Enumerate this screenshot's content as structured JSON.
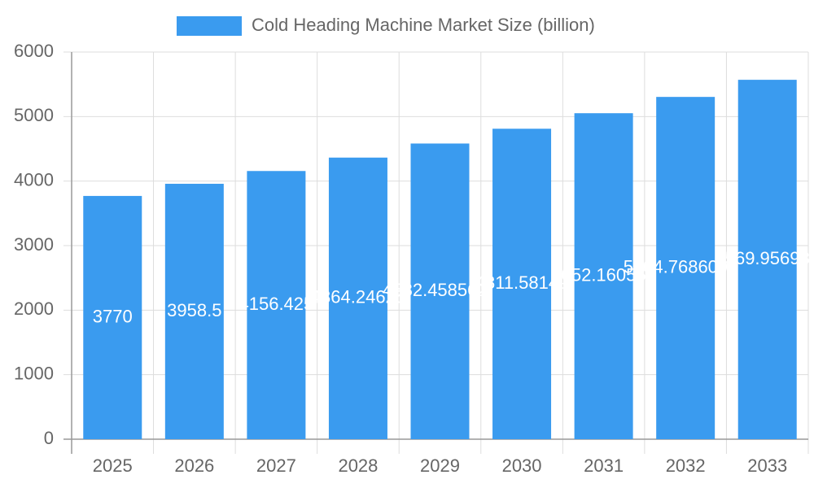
{
  "chart_data": {
    "type": "bar",
    "legend_label": "Cold Heading Machine Market Size (billion)",
    "categories": [
      "2025",
      "2026",
      "2027",
      "2028",
      "2029",
      "2030",
      "2031",
      "2032",
      "2033"
    ],
    "values": [
      3770,
      3958.5,
      4156.425,
      4364.24625,
      4582.4585625,
      4811.58149,
      5052.160565,
      5304.76860975,
      5569.956983
    ],
    "color": "#3a9bef",
    "ylim": [
      0,
      6000
    ],
    "yticks": [
      0,
      1000,
      2000,
      3000,
      4000,
      5000,
      6000
    ],
    "grid": true,
    "legend": "top"
  }
}
